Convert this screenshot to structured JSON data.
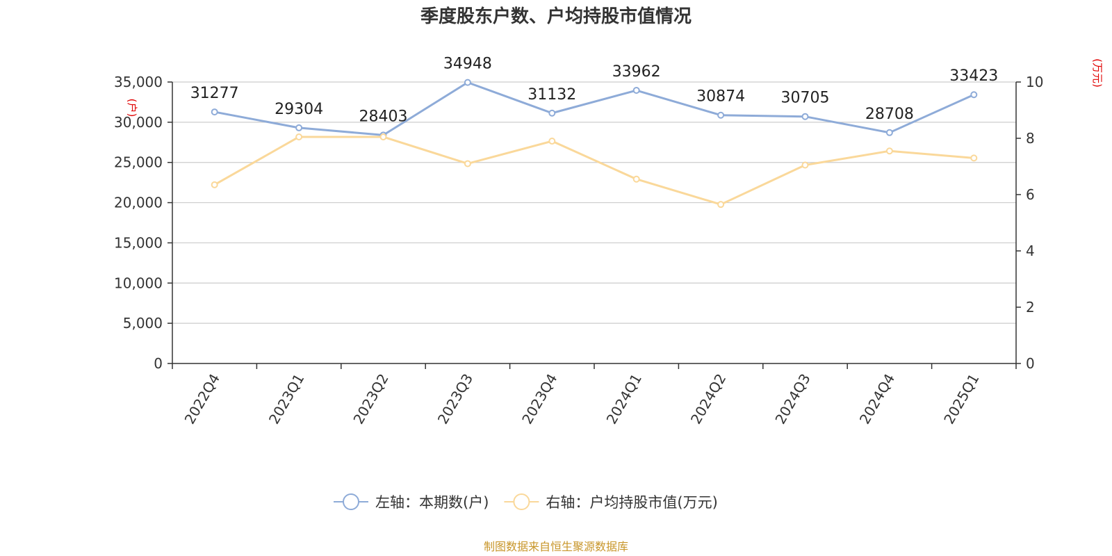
{
  "chart_data": {
    "type": "line",
    "title": "季度股东户数、户均持股市值情况",
    "categories": [
      "2022Q4",
      "2023Q1",
      "2023Q2",
      "2023Q3",
      "2023Q4",
      "2024Q1",
      "2024Q2",
      "2024Q3",
      "2024Q4",
      "2025Q1"
    ],
    "series": [
      {
        "name": "左轴：本期数(户)",
        "axis": "left",
        "color": "#8eabd8",
        "values": [
          31277,
          29304,
          28403,
          34948,
          31132,
          33962,
          30874,
          30705,
          28708,
          33423
        ],
        "show_labels": true
      },
      {
        "name": "右轴：户均持股市值(万元)",
        "axis": "right",
        "color": "#fad89a",
        "values": [
          6.35,
          8.05,
          8.05,
          7.1,
          7.9,
          6.55,
          5.65,
          7.05,
          7.55,
          7.3
        ],
        "show_labels": false
      }
    ],
    "y_left": {
      "unit": "(户)",
      "min": 0,
      "max": 35000,
      "ticks": [
        0,
        5000,
        10000,
        15000,
        20000,
        25000,
        30000,
        35000
      ],
      "tick_labels": [
        "0",
        "5,000",
        "10,000",
        "15,000",
        "20,000",
        "25,000",
        "30,000",
        "35,000"
      ]
    },
    "y_right": {
      "unit": "(万元)",
      "min": 0,
      "max": 10,
      "ticks": [
        0,
        2,
        4,
        6,
        8,
        10
      ],
      "tick_labels": [
        "0",
        "2",
        "4",
        "6",
        "8",
        "10"
      ]
    },
    "grid": true,
    "legend_position": "bottom",
    "source": "制图数据来自恒生聚源数据库"
  }
}
